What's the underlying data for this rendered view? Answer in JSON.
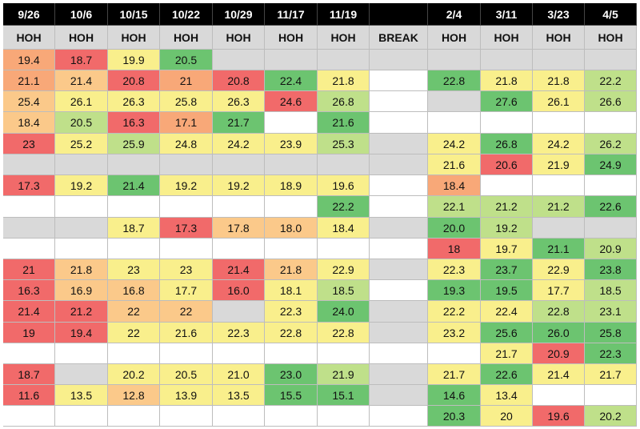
{
  "headers": [
    "9/26",
    "10/6",
    "10/15",
    "10/22",
    "10/29",
    "11/17",
    "11/19",
    "",
    "2/4",
    "3/11",
    "3/23",
    "4/5"
  ],
  "subheaders": [
    "HOH",
    "HOH",
    "HOH",
    "HOH",
    "HOH",
    "HOH",
    "HOH",
    "BREAK",
    "HOH",
    "HOH",
    "HOH",
    "HOH"
  ],
  "colors": {
    "gray": "#d9d9d9",
    "white": "#ffffff",
    "red": "#f16a6a",
    "orange": "#f8a878",
    "peach": "#fbc98a",
    "yellow": "#f9ef8c",
    "lightgreen": "#bfe08a",
    "green": "#6cc470"
  },
  "rows": [
    [
      [
        "19.4",
        "orange"
      ],
      [
        "18.7",
        "red"
      ],
      [
        "19.9",
        "yellow"
      ],
      [
        "20.5",
        "green"
      ],
      [
        "",
        "gray"
      ],
      [
        "",
        "gray"
      ],
      [
        "",
        "gray"
      ],
      [
        "",
        "gray"
      ],
      [
        "",
        "gray"
      ],
      [
        "",
        "gray"
      ],
      [
        "",
        "gray"
      ],
      [
        "",
        "gray"
      ]
    ],
    [
      [
        "21.1",
        "orange"
      ],
      [
        "21.4",
        "peach"
      ],
      [
        "20.8",
        "red"
      ],
      [
        "21",
        "orange"
      ],
      [
        "20.8",
        "red"
      ],
      [
        "22.4",
        "green"
      ],
      [
        "21.8",
        "yellow"
      ],
      [
        "",
        "white"
      ],
      [
        "22.8",
        "green"
      ],
      [
        "21.8",
        "yellow"
      ],
      [
        "21.8",
        "yellow"
      ],
      [
        "22.2",
        "lightgreen"
      ]
    ],
    [
      [
        "25.4",
        "peach"
      ],
      [
        "26.1",
        "yellow"
      ],
      [
        "26.3",
        "yellow"
      ],
      [
        "25.8",
        "yellow"
      ],
      [
        "26.3",
        "yellow"
      ],
      [
        "24.6",
        "red"
      ],
      [
        "26.8",
        "lightgreen"
      ],
      [
        "",
        "white"
      ],
      [
        "",
        "gray"
      ],
      [
        "27.6",
        "green"
      ],
      [
        "26.1",
        "yellow"
      ],
      [
        "26.6",
        "lightgreen"
      ]
    ],
    [
      [
        "18.4",
        "peach"
      ],
      [
        "20.5",
        "lightgreen"
      ],
      [
        "16.3",
        "red"
      ],
      [
        "17.1",
        "orange"
      ],
      [
        "21.7",
        "green"
      ],
      [
        "",
        "white"
      ],
      [
        "21.6",
        "green"
      ],
      [
        "",
        "white"
      ],
      [
        "",
        "white"
      ],
      [
        "",
        "white"
      ],
      [
        "",
        "white"
      ],
      [
        "",
        "white"
      ]
    ],
    [
      [
        "23",
        "red"
      ],
      [
        "25.2",
        "yellow"
      ],
      [
        "25.9",
        "lightgreen"
      ],
      [
        "24.8",
        "yellow"
      ],
      [
        "24.2",
        "yellow"
      ],
      [
        "23.9",
        "yellow"
      ],
      [
        "25.3",
        "lightgreen"
      ],
      [
        "",
        "gray"
      ],
      [
        "24.2",
        "yellow"
      ],
      [
        "26.8",
        "green"
      ],
      [
        "24.2",
        "yellow"
      ],
      [
        "26.2",
        "lightgreen"
      ]
    ],
    [
      [
        "",
        "gray"
      ],
      [
        "",
        "gray"
      ],
      [
        "",
        "gray"
      ],
      [
        "",
        "gray"
      ],
      [
        "",
        "gray"
      ],
      [
        "",
        "gray"
      ],
      [
        "",
        "gray"
      ],
      [
        "",
        "gray"
      ],
      [
        "21.6",
        "yellow"
      ],
      [
        "20.6",
        "red"
      ],
      [
        "21.9",
        "yellow"
      ],
      [
        "24.9",
        "green"
      ]
    ],
    [
      [
        "17.3",
        "red"
      ],
      [
        "19.2",
        "yellow"
      ],
      [
        "21.4",
        "green"
      ],
      [
        "19.2",
        "yellow"
      ],
      [
        "19.2",
        "yellow"
      ],
      [
        "18.9",
        "yellow"
      ],
      [
        "19.6",
        "yellow"
      ],
      [
        "",
        "white"
      ],
      [
        "18.4",
        "orange"
      ],
      [
        "",
        "white"
      ],
      [
        "",
        "white"
      ],
      [
        "",
        "white"
      ]
    ],
    [
      [
        "",
        "white"
      ],
      [
        "",
        "white"
      ],
      [
        "",
        "white"
      ],
      [
        "",
        "white"
      ],
      [
        "",
        "white"
      ],
      [
        "",
        "white"
      ],
      [
        "22.2",
        "green"
      ],
      [
        "",
        "white"
      ],
      [
        "22.1",
        "lightgreen"
      ],
      [
        "21.2",
        "lightgreen"
      ],
      [
        "21.2",
        "lightgreen"
      ],
      [
        "22.6",
        "green"
      ]
    ],
    [
      [
        "",
        "gray"
      ],
      [
        "",
        "gray"
      ],
      [
        "18.7",
        "yellow"
      ],
      [
        "17.3",
        "red"
      ],
      [
        "17.8",
        "peach"
      ],
      [
        "18.0",
        "peach"
      ],
      [
        "18.4",
        "yellow"
      ],
      [
        "",
        "gray"
      ],
      [
        "20.0",
        "green"
      ],
      [
        "19.2",
        "lightgreen"
      ],
      [
        "",
        "gray"
      ],
      [
        "",
        "gray"
      ]
    ],
    [
      [
        "",
        "white"
      ],
      [
        "",
        "white"
      ],
      [
        "",
        "white"
      ],
      [
        "",
        "white"
      ],
      [
        "",
        "white"
      ],
      [
        "",
        "white"
      ],
      [
        "",
        "white"
      ],
      [
        "",
        "white"
      ],
      [
        "18",
        "red"
      ],
      [
        "19.7",
        "yellow"
      ],
      [
        "21.1",
        "green"
      ],
      [
        "20.9",
        "lightgreen"
      ]
    ],
    [
      [
        "21",
        "red"
      ],
      [
        "21.8",
        "peach"
      ],
      [
        "23",
        "yellow"
      ],
      [
        "23",
        "yellow"
      ],
      [
        "21.4",
        "red"
      ],
      [
        "21.8",
        "peach"
      ],
      [
        "22.9",
        "yellow"
      ],
      [
        "",
        "gray"
      ],
      [
        "22.3",
        "yellow"
      ],
      [
        "23.7",
        "green"
      ],
      [
        "22.9",
        "yellow"
      ],
      [
        "23.8",
        "green"
      ]
    ],
    [
      [
        "16.3",
        "red"
      ],
      [
        "16.9",
        "peach"
      ],
      [
        "16.8",
        "peach"
      ],
      [
        "17.7",
        "yellow"
      ],
      [
        "16.0",
        "red"
      ],
      [
        "18.1",
        "yellow"
      ],
      [
        "18.5",
        "lightgreen"
      ],
      [
        "",
        "white"
      ],
      [
        "19.3",
        "green"
      ],
      [
        "19.5",
        "green"
      ],
      [
        "17.7",
        "yellow"
      ],
      [
        "18.5",
        "lightgreen"
      ]
    ],
    [
      [
        "21.4",
        "red"
      ],
      [
        "21.2",
        "red"
      ],
      [
        "22",
        "peach"
      ],
      [
        "22",
        "peach"
      ],
      [
        "",
        "gray"
      ],
      [
        "22.3",
        "yellow"
      ],
      [
        "24.0",
        "green"
      ],
      [
        "",
        "gray"
      ],
      [
        "22.2",
        "yellow"
      ],
      [
        "22.4",
        "yellow"
      ],
      [
        "22.8",
        "lightgreen"
      ],
      [
        "23.1",
        "lightgreen"
      ]
    ],
    [
      [
        "19",
        "red"
      ],
      [
        "19.4",
        "red"
      ],
      [
        "22",
        "yellow"
      ],
      [
        "21.6",
        "yellow"
      ],
      [
        "22.3",
        "yellow"
      ],
      [
        "22.8",
        "yellow"
      ],
      [
        "22.8",
        "yellow"
      ],
      [
        "",
        "gray"
      ],
      [
        "23.2",
        "yellow"
      ],
      [
        "25.6",
        "green"
      ],
      [
        "26.0",
        "green"
      ],
      [
        "25.8",
        "green"
      ]
    ],
    [
      [
        "",
        "white"
      ],
      [
        "",
        "white"
      ],
      [
        "",
        "white"
      ],
      [
        "",
        "white"
      ],
      [
        "",
        "white"
      ],
      [
        "",
        "white"
      ],
      [
        "",
        "white"
      ],
      [
        "",
        "white"
      ],
      [
        "",
        "white"
      ],
      [
        "21.7",
        "yellow"
      ],
      [
        "20.9",
        "red"
      ],
      [
        "22.3",
        "green"
      ]
    ],
    [
      [
        "18.7",
        "red"
      ],
      [
        "",
        "gray"
      ],
      [
        "20.2",
        "yellow"
      ],
      [
        "20.5",
        "yellow"
      ],
      [
        "21.0",
        "yellow"
      ],
      [
        "23.0",
        "green"
      ],
      [
        "21.9",
        "lightgreen"
      ],
      [
        "",
        "gray"
      ],
      [
        "21.7",
        "yellow"
      ],
      [
        "22.6",
        "green"
      ],
      [
        "21.4",
        "yellow"
      ],
      [
        "21.7",
        "yellow"
      ]
    ],
    [
      [
        "11.6",
        "red"
      ],
      [
        "13.5",
        "yellow"
      ],
      [
        "12.8",
        "peach"
      ],
      [
        "13.9",
        "yellow"
      ],
      [
        "13.5",
        "yellow"
      ],
      [
        "15.5",
        "green"
      ],
      [
        "15.1",
        "green"
      ],
      [
        "",
        "gray"
      ],
      [
        "14.6",
        "green"
      ],
      [
        "13.4",
        "yellow"
      ],
      [
        "",
        "white"
      ],
      [
        "",
        "white"
      ]
    ],
    [
      [
        "",
        "white"
      ],
      [
        "",
        "white"
      ],
      [
        "",
        "white"
      ],
      [
        "",
        "white"
      ],
      [
        "",
        "white"
      ],
      [
        "",
        "white"
      ],
      [
        "",
        "white"
      ],
      [
        "",
        "white"
      ],
      [
        "20.3",
        "green"
      ],
      [
        "20",
        "yellow"
      ],
      [
        "19.6",
        "red"
      ],
      [
        "20.2",
        "lightgreen"
      ]
    ]
  ]
}
